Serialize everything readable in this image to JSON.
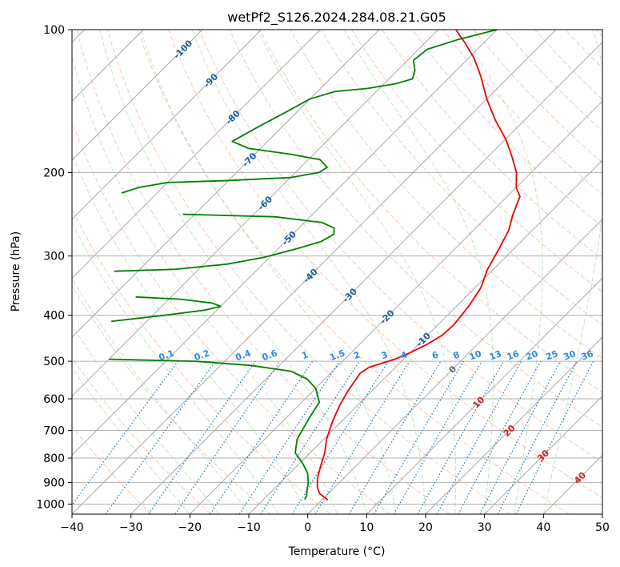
{
  "chart_data": {
    "type": "line",
    "subtype": "skew-t log-p",
    "title": "wetPf2_S126.2024.284.08.21.G05",
    "xlabel": "Temperature (°C)",
    "ylabel": "Pressure (hPa)",
    "xlim": [
      -40,
      50
    ],
    "ylim": [
      1050,
      100
    ],
    "y_scale": "log",
    "grid": true,
    "x_ticks": [
      -40,
      -30,
      -20,
      -10,
      0,
      10,
      20,
      30,
      40,
      50
    ],
    "y_ticks": [
      100,
      200,
      300,
      400,
      500,
      600,
      700,
      800,
      900,
      1000
    ],
    "colors": {
      "temperature": "#ee0000",
      "dewpoint": "#008000",
      "dry_adiabat": "#f4a583",
      "moist_adiabat": "#8fd18f",
      "mixing_ratio": "#1f77b4",
      "isotherm": "#888888"
    },
    "series": [
      {
        "points": [
          [
            1.0,
            980
          ],
          [
            -1.5,
            950
          ],
          [
            -3.0,
            920
          ],
          [
            -4.5,
            880
          ],
          [
            -6.0,
            830
          ],
          [
            -7.5,
            780
          ],
          [
            -9.5,
            730
          ],
          [
            -11.5,
            670
          ],
          [
            -13.0,
            620
          ],
          [
            -14.0,
            580
          ],
          [
            -15.0,
            530
          ],
          [
            -14.5,
            515
          ],
          [
            -13.0,
            505
          ],
          [
            -11.5,
            495
          ],
          [
            -10.0,
            480
          ],
          [
            -8.5,
            460
          ],
          [
            -7.5,
            440
          ],
          [
            -7.3,
            420
          ],
          [
            -7.6,
            400
          ],
          [
            -8.0,
            380
          ],
          [
            -9.0,
            350
          ],
          [
            -11.0,
            320
          ],
          [
            -12.5,
            290
          ],
          [
            -14.0,
            265
          ],
          [
            -16.0,
            245
          ],
          [
            -17.8,
            225
          ],
          [
            -20.0,
            215
          ],
          [
            -22.5,
            200
          ],
          [
            -26.0,
            185
          ],
          [
            -30.0,
            170
          ],
          [
            -35.0,
            155
          ],
          [
            -40.0,
            140
          ],
          [
            -45.0,
            125
          ],
          [
            -49.0,
            115
          ],
          [
            -53.0,
            107
          ],
          [
            -57.0,
            100
          ]
        ]
      },
      {
        "points": [
          [
            -3.0,
            978
          ],
          [
            -3.3,
            960
          ],
          [
            -4.0,
            940
          ],
          [
            -5.3,
            900
          ],
          [
            -7.0,
            860
          ],
          [
            -9.5,
            820
          ],
          [
            -12.5,
            780
          ],
          [
            -14.5,
            730
          ],
          [
            -16.0,
            660
          ],
          [
            -17.0,
            610
          ],
          [
            -20.0,
            570
          ],
          [
            -23.0,
            545
          ],
          [
            -27.0,
            525
          ],
          [
            -35.0,
            510
          ],
          [
            -45.0,
            500
          ],
          [
            -60.0,
            495
          ]
        ]
      },
      {
        "points": [
          [
            -66.0,
            412
          ],
          [
            -58.0,
            400
          ],
          [
            -52.0,
            390
          ],
          [
            -50.0,
            383
          ],
          [
            -52.0,
            377
          ],
          [
            -58.0,
            370
          ],
          [
            -66.0,
            366
          ]
        ]
      },
      {
        "points": [
          [
            -74.0,
            323
          ],
          [
            -64.0,
            320
          ],
          [
            -56.0,
            312
          ],
          [
            -51.0,
            302
          ],
          [
            -47.0,
            290
          ],
          [
            -44.0,
            280
          ],
          [
            -43.0,
            270
          ],
          [
            -44.0,
            262
          ],
          [
            -47.0,
            255
          ],
          [
            -56.0,
            248
          ],
          [
            -72.0,
            245
          ]
        ]
      },
      {
        "points": [
          [
            -86.0,
            221
          ],
          [
            -84.0,
            215
          ],
          [
            -80.0,
            210
          ],
          [
            -70.0,
            208
          ],
          [
            -60.0,
            205
          ],
          [
            -56.0,
            200
          ],
          [
            -55.5,
            195
          ],
          [
            -58.0,
            188
          ],
          [
            -64.0,
            183
          ],
          [
            -72.0,
            178
          ],
          [
            -76.0,
            172
          ],
          [
            -74.0,
            160
          ],
          [
            -72.0,
            150
          ],
          [
            -70.0,
            140
          ],
          [
            -67.0,
            135
          ],
          [
            -62.0,
            133
          ],
          [
            -58.0,
            130
          ],
          [
            -56.0,
            127
          ],
          [
            -57.0,
            122
          ],
          [
            -59.0,
            116
          ],
          [
            -58.5,
            110
          ],
          [
            -55.0,
            105
          ],
          [
            -50.0,
            100
          ]
        ]
      }
    ],
    "isotherm_labels": [
      {
        "label": "-100",
        "p": 110
      },
      {
        "label": "-90",
        "p": 128
      },
      {
        "label": "-80",
        "p": 153
      },
      {
        "label": "-70",
        "p": 188
      },
      {
        "label": "-60",
        "p": 232
      },
      {
        "label": "-50",
        "p": 275
      },
      {
        "label": "-40",
        "p": 330
      },
      {
        "label": "-30",
        "p": 363
      },
      {
        "label": "-20",
        "p": 403
      },
      {
        "label": "-10",
        "p": 450
      },
      {
        "label": "0",
        "p": 520
      },
      {
        "label": "10",
        "p": 610
      },
      {
        "label": "20",
        "p": 700
      },
      {
        "label": "30",
        "p": 790
      },
      {
        "label": "40",
        "p": 880
      }
    ],
    "mixing_ratio_labels": [
      "0.1",
      "0.2",
      "0.4",
      "0.6",
      "1",
      "1.5",
      "2",
      "3",
      "4",
      "6",
      "8",
      "10",
      "13",
      "16",
      "20",
      "25",
      "30",
      "36"
    ],
    "mixing_ratio_label_temps": [
      -23.8,
      -17.8,
      -10.8,
      -6.3,
      -0.3,
      5.2,
      8.5,
      13.2,
      16.5,
      21.8,
      25.4,
      28.6,
      32.0,
      35.0,
      38.2,
      41.6,
      44.6,
      47.6
    ]
  }
}
